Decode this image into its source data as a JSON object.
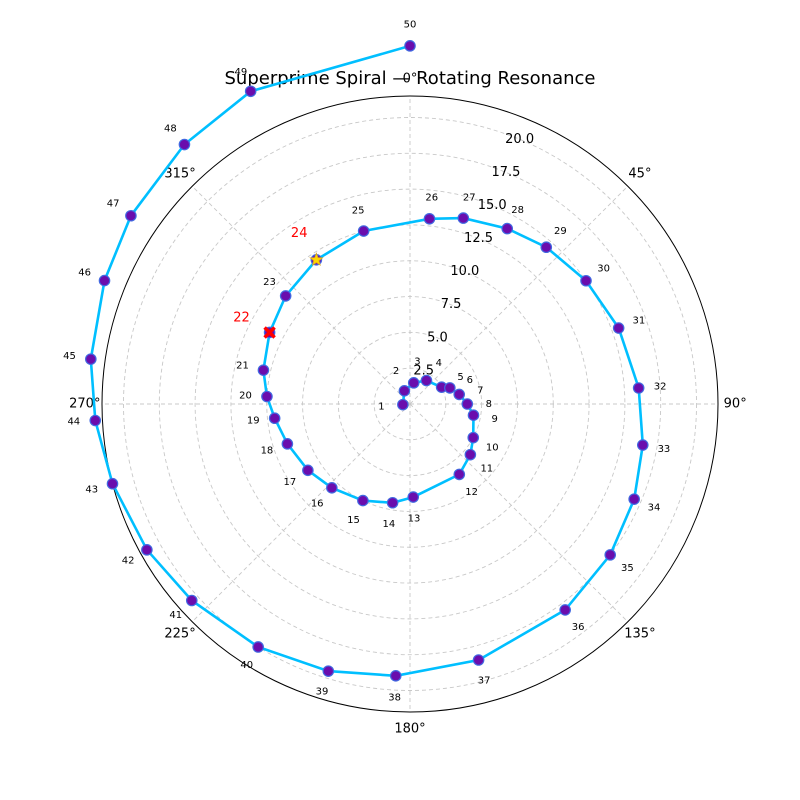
{
  "chart_data": {
    "type": "scatter",
    "title": "Superprime Spiral — Rotating Resonance",
    "projection": "polar",
    "theta_zero": "N",
    "theta_direction": "clockwise",
    "rlim": [
      0,
      21.5
    ],
    "r_ticks": [
      "2.5",
      "5.0",
      "7.5",
      "10.0",
      "12.5",
      "15.0",
      "17.5",
      "20.0"
    ],
    "theta_ticks": [
      "0°",
      "45°",
      "90°",
      "135°",
      "180°",
      "225°",
      "270°",
      "315°"
    ],
    "grid": true,
    "line_color": "#00BFFF",
    "marker_color": "#6A0DAD",
    "marker_edge_color": "#4169E1",
    "points": [
      {
        "n": 1,
        "theta_deg": 265,
        "r": 0.5
      },
      {
        "n": 2,
        "theta_deg": 337,
        "r": 1.0
      },
      {
        "n": 3,
        "theta_deg": 10,
        "r": 1.5
      },
      {
        "n": 4,
        "theta_deg": 35,
        "r": 2.0
      },
      {
        "n": 5,
        "theta_deg": 62,
        "r": 2.5
      },
      {
        "n": 6,
        "theta_deg": 68,
        "r": 3.0
      },
      {
        "n": 7,
        "theta_deg": 79,
        "r": 3.5
      },
      {
        "n": 8,
        "theta_deg": 90,
        "r": 4.0
      },
      {
        "n": 9,
        "theta_deg": 100,
        "r": 4.5
      },
      {
        "n": 10,
        "theta_deg": 118,
        "r": 5.0
      },
      {
        "n": 11,
        "theta_deg": 130,
        "r": 5.5
      },
      {
        "n": 12,
        "theta_deg": 145,
        "r": 6.0
      },
      {
        "n": 13,
        "theta_deg": 178,
        "r": 6.5
      },
      {
        "n": 14,
        "theta_deg": 190,
        "r": 7.0
      },
      {
        "n": 15,
        "theta_deg": 206,
        "r": 7.5
      },
      {
        "n": 16,
        "theta_deg": 223,
        "r": 8.0
      },
      {
        "n": 17,
        "theta_deg": 237,
        "r": 8.5
      },
      {
        "n": 18,
        "theta_deg": 252,
        "r": 9.0
      },
      {
        "n": 19,
        "theta_deg": 264,
        "r": 9.5
      },
      {
        "n": 20,
        "theta_deg": 273,
        "r": 10.0
      },
      {
        "n": 21,
        "theta_deg": 283,
        "r": 10.5
      },
      {
        "n": 22,
        "theta_deg": 297,
        "r": 11.0,
        "highlight": "#FF0000",
        "marker": "x"
      },
      {
        "n": 23,
        "theta_deg": 311,
        "r": 11.5
      },
      {
        "n": 24,
        "theta_deg": 327,
        "r": 12.0,
        "highlight": "#FF0000",
        "marker": "star"
      },
      {
        "n": 25,
        "theta_deg": 345,
        "r": 12.5
      },
      {
        "n": 26,
        "theta_deg": 6,
        "r": 13.0
      },
      {
        "n": 27,
        "theta_deg": 16,
        "r": 13.5
      },
      {
        "n": 28,
        "theta_deg": 29,
        "r": 14.0
      },
      {
        "n": 29,
        "theta_deg": 41,
        "r": 14.5
      },
      {
        "n": 30,
        "theta_deg": 55,
        "r": 15.0
      },
      {
        "n": 31,
        "theta_deg": 70,
        "r": 15.5
      },
      {
        "n": 32,
        "theta_deg": 86,
        "r": 16.0
      },
      {
        "n": 33,
        "theta_deg": 100,
        "r": 16.5
      },
      {
        "n": 34,
        "theta_deg": 113,
        "r": 17.0
      },
      {
        "n": 35,
        "theta_deg": 127,
        "r": 17.5
      },
      {
        "n": 36,
        "theta_deg": 143,
        "r": 18.0
      },
      {
        "n": 37,
        "theta_deg": 165,
        "r": 18.5
      },
      {
        "n": 38,
        "theta_deg": 183,
        "r": 19.0
      },
      {
        "n": 39,
        "theta_deg": 197,
        "r": 19.5
      },
      {
        "n": 40,
        "theta_deg": 212,
        "r": 20.0
      },
      {
        "n": 41,
        "theta_deg": 228,
        "r": 20.5
      },
      {
        "n": 42,
        "theta_deg": 241,
        "r": 21.0
      },
      {
        "n": 43,
        "theta_deg": 255,
        "r": 21.5
      },
      {
        "n": 44,
        "theta_deg": 267,
        "r": 22.0
      },
      {
        "n": 45,
        "theta_deg": 278,
        "r": 22.5
      },
      {
        "n": 46,
        "theta_deg": 292,
        "r": 23.0
      },
      {
        "n": 47,
        "theta_deg": 304,
        "r": 23.5
      },
      {
        "n": 48,
        "theta_deg": 319,
        "r": 24.0
      },
      {
        "n": 49,
        "theta_deg": 333,
        "r": 24.5
      },
      {
        "n": 50,
        "theta_deg": 360,
        "r": 25.0
      }
    ]
  }
}
